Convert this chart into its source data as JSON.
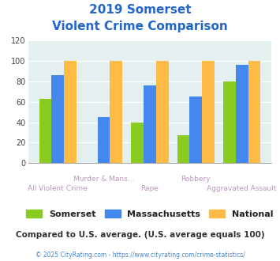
{
  "title_line1": "2019 Somerset",
  "title_line2": "Violent Crime Comparison",
  "categories": [
    "All Violent Crime",
    "Murder & Mans...",
    "Rape",
    "Robbery",
    "Aggravated Assault"
  ],
  "somerset": [
    63,
    0,
    40,
    27,
    80
  ],
  "massachusetts": [
    86,
    45,
    76,
    65,
    96
  ],
  "national": [
    100,
    100,
    100,
    100,
    100
  ],
  "somerset_color": "#88cc22",
  "massachusetts_color": "#4488ee",
  "national_color": "#ffbb44",
  "ylim": [
    0,
    120
  ],
  "yticks": [
    0,
    20,
    40,
    60,
    80,
    100,
    120
  ],
  "bg_color": "#e4f0f0",
  "title_color": "#2266cc",
  "xlabel_color": "#bb99bb",
  "footer_text": "Compared to U.S. average. (U.S. average equals 100)",
  "copyright_text": "© 2025 CityRating.com - https://www.cityrating.com/crime-statistics/",
  "footer_color": "#333333",
  "copyright_color": "#4488cc",
  "legend_labels": [
    "Somerset",
    "Massachusetts",
    "National"
  ]
}
